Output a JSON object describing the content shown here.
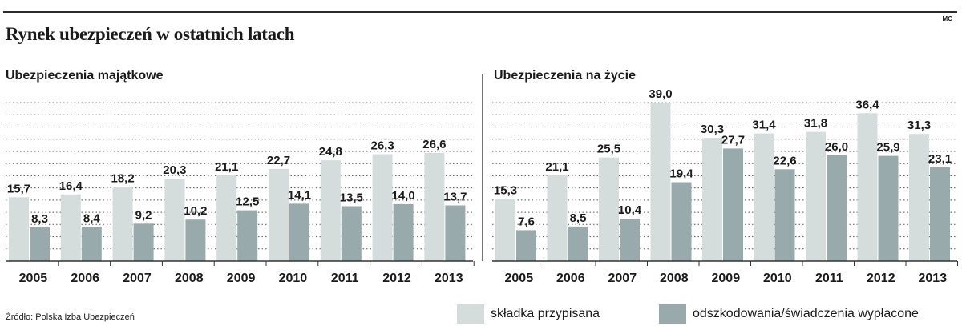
{
  "header": {
    "title": "Rynek ubezpieczeń w ostatnich latach",
    "credit": "MC"
  },
  "source": "Źródło: Polska Izba Ubezpieczeń",
  "colors": {
    "light": "#d4dcdc",
    "dark": "#98aaab",
    "grid": "#555555",
    "axis": "#333333"
  },
  "legend": {
    "light_label": "składka przypisana",
    "dark_label": "odszkodowania/świadczenia wypłacone"
  },
  "chart_data": [
    {
      "type": "bar",
      "title": "Ubezpieczenia majątkowe",
      "categories": [
        "2005",
        "2006",
        "2007",
        "2008",
        "2009",
        "2010",
        "2011",
        "2012",
        "2013"
      ],
      "series": [
        {
          "name": "składka przypisana",
          "values": [
            15.7,
            16.4,
            18.2,
            20.3,
            21.1,
            22.7,
            24.8,
            26.3,
            26.6
          ],
          "labels": [
            "15,7",
            "16,4",
            "18,2",
            "20,3",
            "21,1",
            "22,7",
            "24,8",
            "26,3",
            "26,6"
          ]
        },
        {
          "name": "odszkodowania/świadczenia wypłacone",
          "values": [
            8.3,
            8.4,
            9.2,
            10.2,
            12.5,
            14.1,
            13.5,
            14.0,
            13.7
          ],
          "labels": [
            "8,3",
            "8,4",
            "9,2",
            "10,2",
            "12,5",
            "14,1",
            "13,5",
            "14,0",
            "13,7"
          ]
        }
      ],
      "ylim": [
        0,
        40
      ],
      "grid": true
    },
    {
      "type": "bar",
      "title": "Ubezpieczenia na życie",
      "categories": [
        "2005",
        "2006",
        "2007",
        "2008",
        "2009",
        "2010",
        "2011",
        "2012",
        "2013"
      ],
      "series": [
        {
          "name": "składka przypisana",
          "values": [
            15.3,
            21.1,
            25.5,
            39.0,
            30.3,
            31.4,
            31.8,
            36.4,
            31.3
          ],
          "labels": [
            "15,3",
            "21,1",
            "25,5",
            "39,0",
            "30,3",
            "31,4",
            "31,8",
            "36,4",
            "31,3"
          ]
        },
        {
          "name": "odszkodowania/świadczenia wypłacone",
          "values": [
            7.6,
            8.5,
            10.4,
            19.4,
            27.7,
            22.6,
            26.0,
            25.9,
            23.1
          ],
          "labels": [
            "7,6",
            "8,5",
            "10,4",
            "19,4",
            "27,7",
            "22,6",
            "26,0",
            "25,9",
            "23,1"
          ]
        }
      ],
      "ylim": [
        0,
        40
      ],
      "grid": true
    }
  ]
}
